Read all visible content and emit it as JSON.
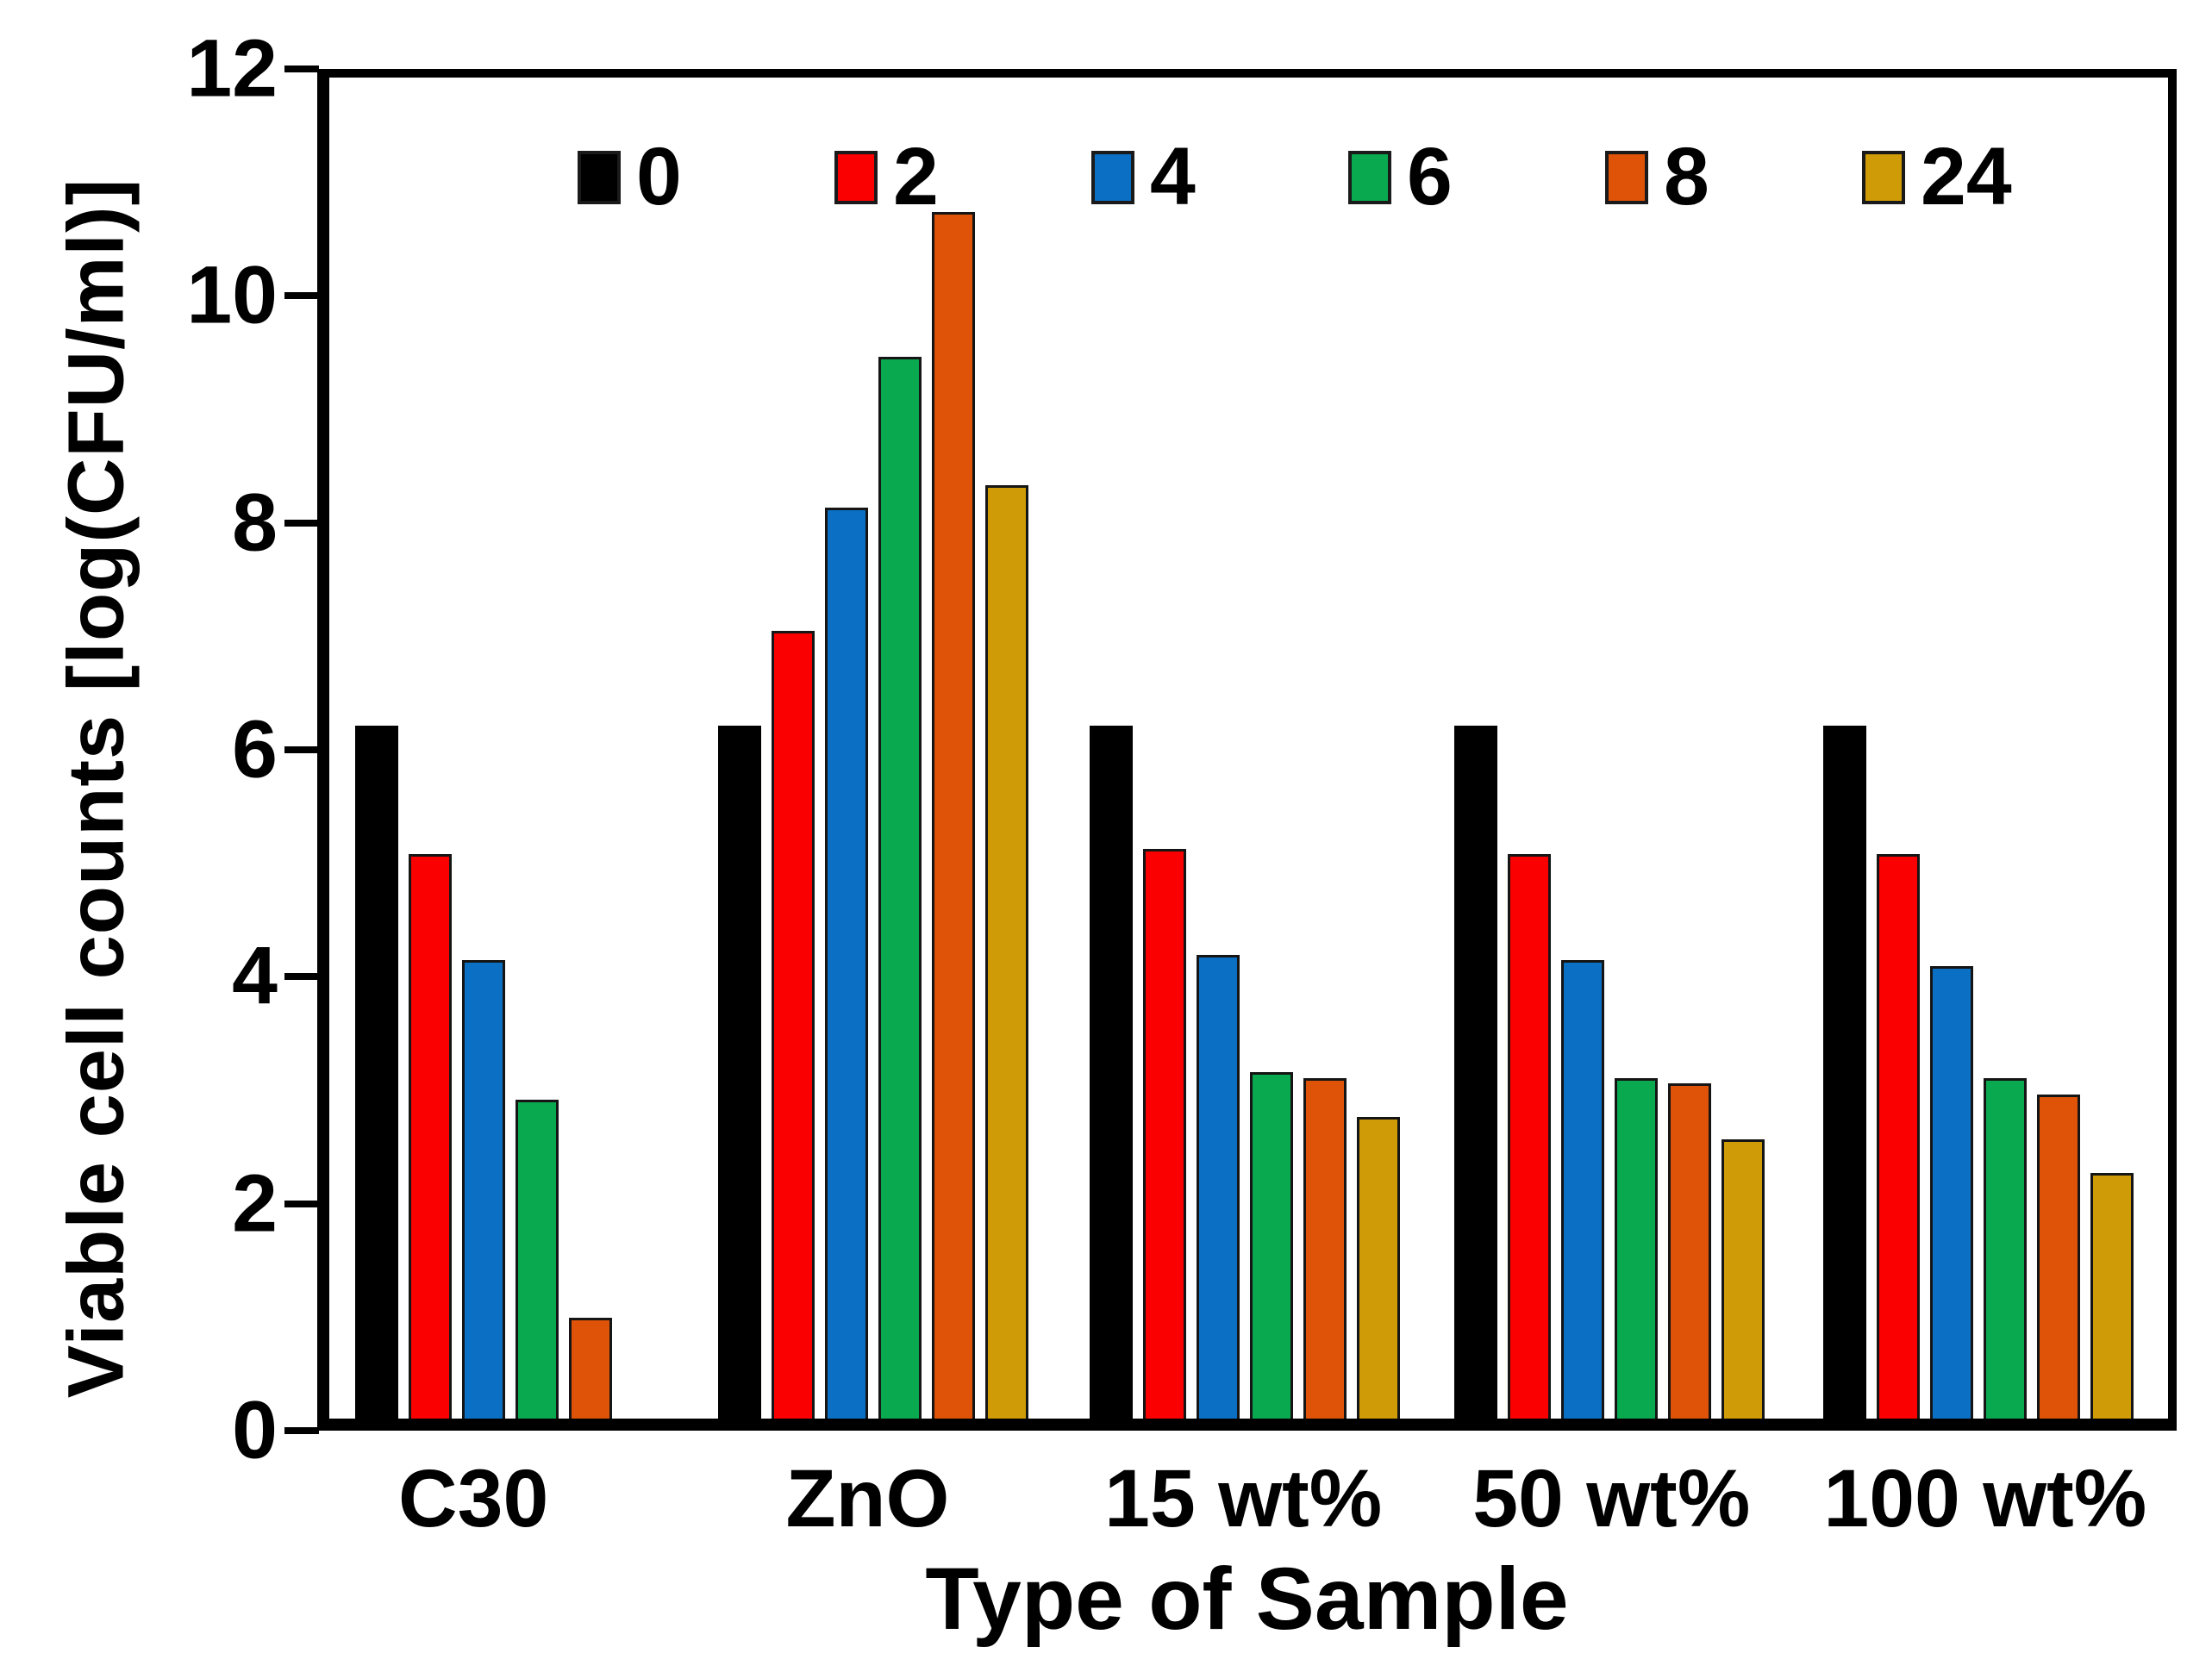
{
  "chart_data": {
    "type": "bar",
    "title": "",
    "xlabel": "Type of Sample",
    "ylabel": "Viable cell counts [log(CFU/ml)]",
    "ylim": [
      0,
      12
    ],
    "yticks": [
      12,
      10,
      8,
      6,
      4,
      2,
      0
    ],
    "grid": false,
    "legend_position": "top-inside",
    "categories": [
      "C30",
      "ZnO",
      "15 wt%",
      "50 wt%",
      "100 wt%"
    ],
    "series": [
      {
        "name": "0",
        "color": "#000000",
        "values": [
          6.2,
          6.2,
          6.2,
          6.2,
          6.2
        ]
      },
      {
        "name": "2",
        "color": "#FA0000",
        "values": [
          5.05,
          7.05,
          5.1,
          5.05,
          5.05
        ]
      },
      {
        "name": "4",
        "color": "#0B70C4",
        "values": [
          4.1,
          8.15,
          4.15,
          4.1,
          4.05
        ]
      },
      {
        "name": "6",
        "color": "#09A94F",
        "values": [
          2.85,
          9.5,
          3.1,
          3.05,
          3.05
        ]
      },
      {
        "name": "8",
        "color": "#DE5307",
        "values": [
          0.9,
          10.8,
          3.05,
          3.0,
          2.9
        ]
      },
      {
        "name": "24",
        "color": "#CF9B06",
        "values": [
          0,
          8.35,
          2.7,
          2.5,
          2.2
        ]
      }
    ]
  }
}
